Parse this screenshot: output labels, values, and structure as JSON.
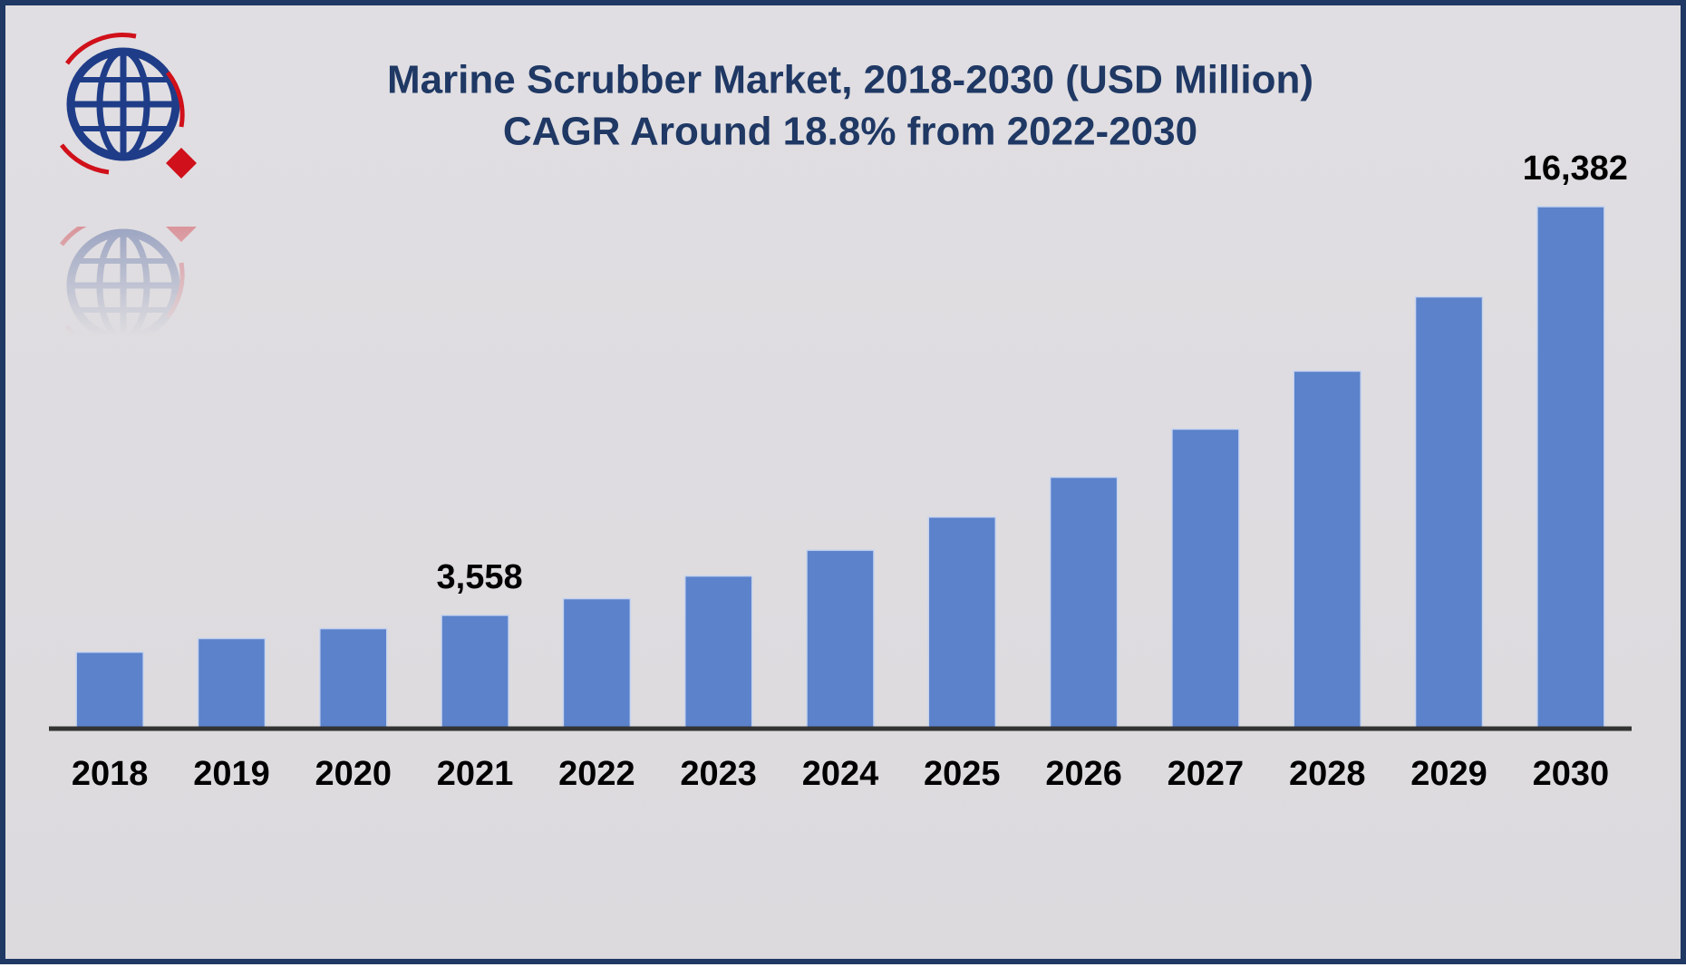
{
  "chart_data": {
    "type": "bar",
    "title": "Marine Scrubber Market, 2018-2030 (USD Million)",
    "subtitle": "CAGR Around 18.8% from 2022-2030",
    "categories": [
      "2018",
      "2019",
      "2020",
      "2021",
      "2022",
      "2023",
      "2024",
      "2025",
      "2026",
      "2027",
      "2028",
      "2029",
      "2030"
    ],
    "values": [
      2400,
      2830,
      3140,
      3558,
      4080,
      4790,
      5600,
      6640,
      7890,
      9400,
      11220,
      13550,
      16382
    ],
    "value_labels": [
      null,
      null,
      null,
      "3,558",
      null,
      null,
      null,
      null,
      null,
      null,
      null,
      null,
      "16,382"
    ],
    "color": "#5b82cb"
  }
}
